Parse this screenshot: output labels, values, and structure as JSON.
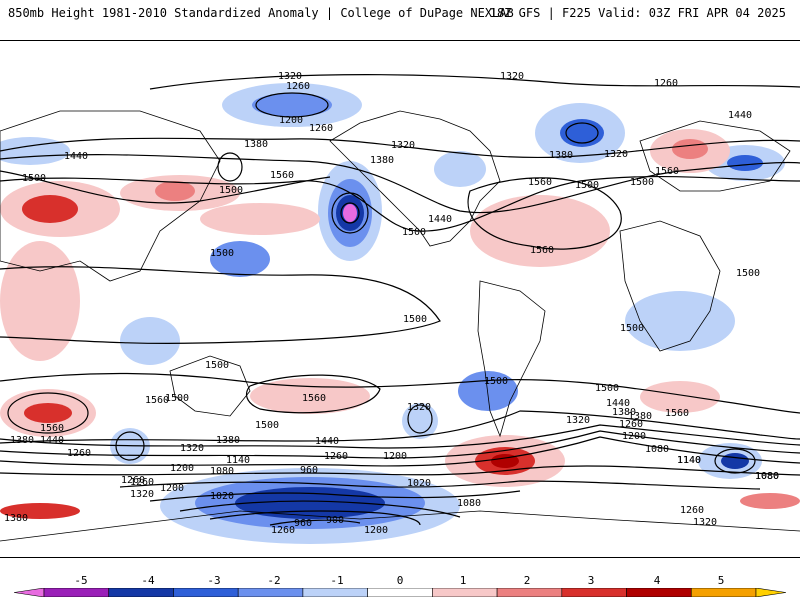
{
  "header": {
    "title_left": "850mb Height 1981-2010 Standardized Anomaly | College of DuPage NEXLAB",
    "title_right": "18Z GFS | F225 Valid: 03Z FRI APR 04 2025"
  },
  "map": {
    "contour_labels": [
      "1320",
      "1320",
      "1260",
      "1260",
      "1200",
      "1260",
      "1440",
      "1380",
      "1320",
      "1380",
      "1500",
      "1560",
      "1320",
      "1380",
      "1440",
      "1500",
      "1560",
      "1500",
      "1500",
      "1440",
      "1560",
      "1500",
      "1560",
      "1500",
      "1500",
      "1500",
      "1500",
      "1500",
      "1500",
      "1500",
      "1560",
      "1560",
      "1500",
      "1320",
      "1500",
      "1440",
      "1380",
      "1320",
      "1260",
      "1200",
      "1560",
      "1080",
      "1140",
      "1080",
      "1380",
      "1560",
      "1440",
      "1260",
      "1380",
      "1440",
      "1320",
      "1260",
      "1200",
      "1140",
      "1080",
      "1020",
      "960",
      "1260",
      "1200",
      "1020",
      "1080",
      "1260",
      "1320",
      "1380",
      "1200",
      "900",
      "960",
      "1260",
      "1200",
      "1380",
      "1140",
      "1080",
      "1260",
      "1320"
    ]
  },
  "colorbar": {
    "ticks": [
      "-5",
      "-4",
      "-3",
      "-2",
      "-1",
      "0",
      "1",
      "2",
      "3",
      "4",
      "5"
    ],
    "colors": [
      "#e86be0",
      "#9a1fb8",
      "#1438a6",
      "#2e5fd8",
      "#6b90ee",
      "#bcd2f8",
      "#ffffff",
      "#f7c8c8",
      "#ec8080",
      "#d8302c",
      "#b00000",
      "#f5a000",
      "#ffd000"
    ]
  }
}
